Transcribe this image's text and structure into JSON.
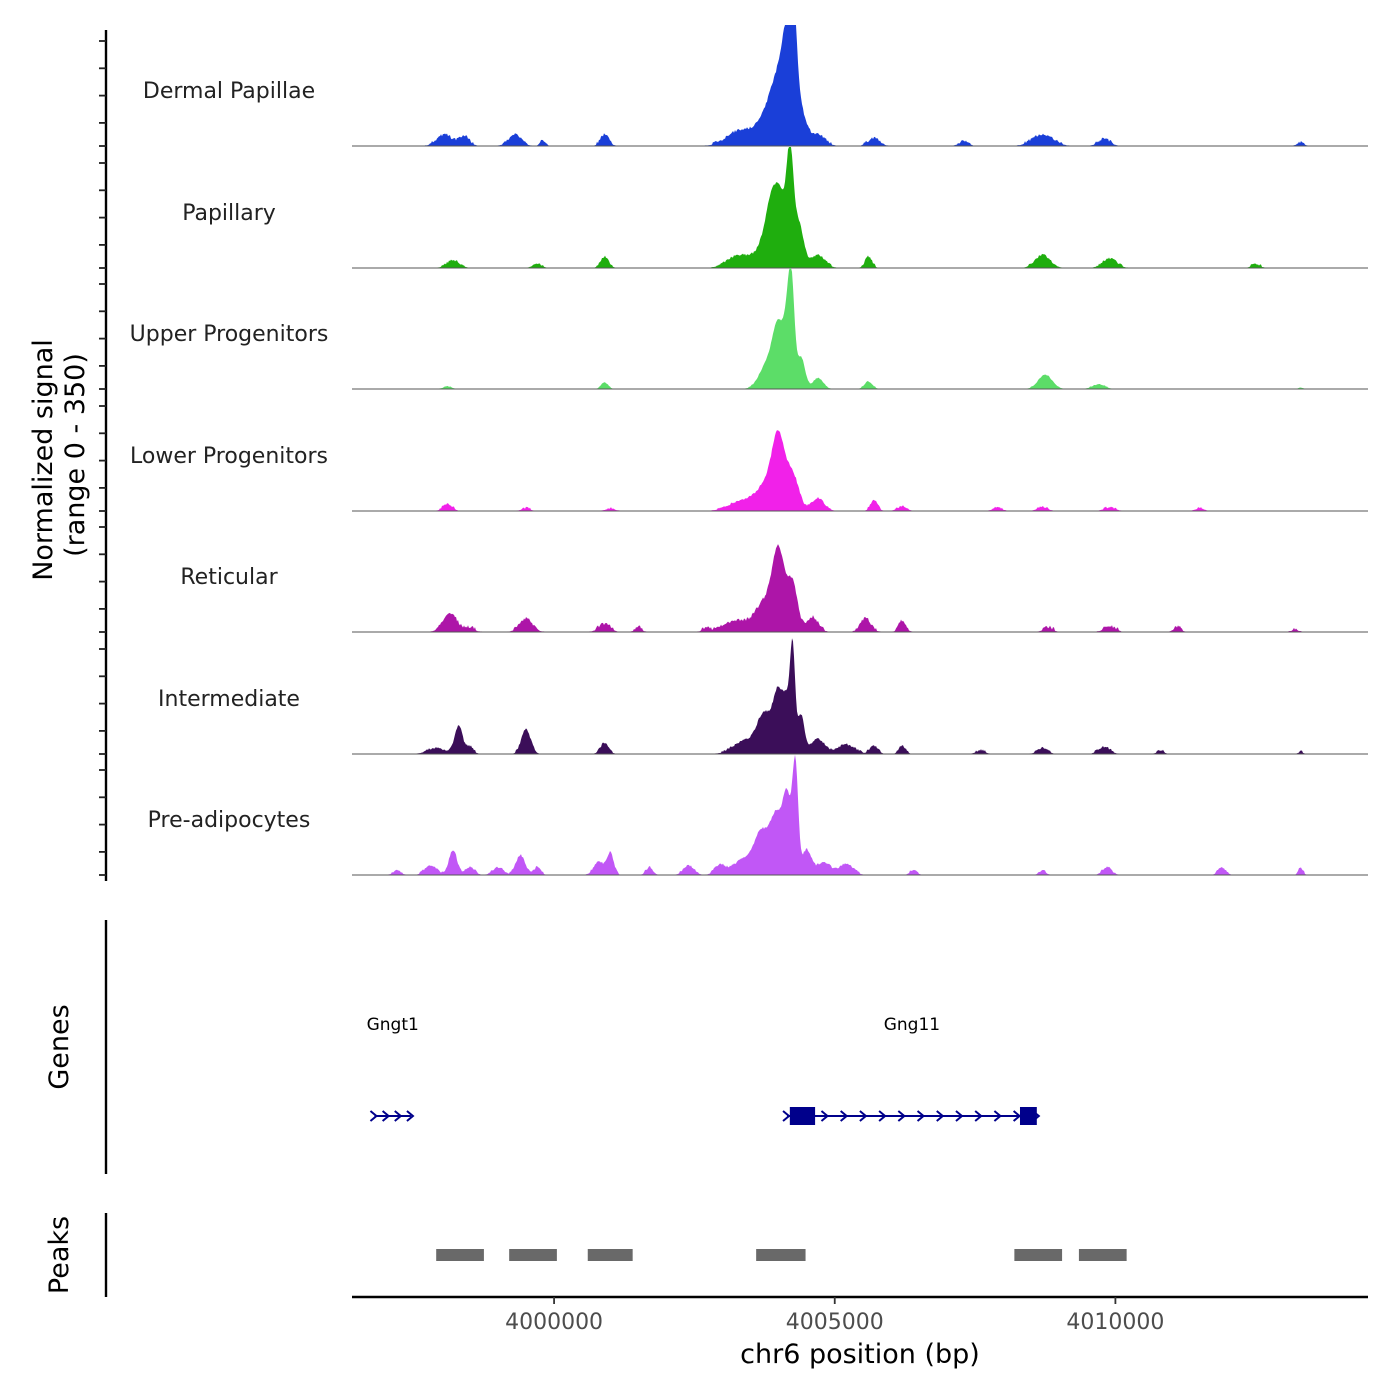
{
  "chart_data": {
    "type": "area",
    "title": "",
    "chromosome": "chr6",
    "xlabel": "chr6 position (bp)",
    "ylabel": "Normalized signal",
    "ylabel_range": "(range 0 - 350)",
    "xlim": [
      3996400,
      4014500
    ],
    "ylim": [
      0,
      350
    ],
    "x_ticks": [
      4000000,
      4005000,
      4010000
    ],
    "x_tick_labels": [
      "4000000",
      "4005000",
      "4010000"
    ],
    "tracks": [
      {
        "name": "Dermal Papillae",
        "color": "#1a3fd8",
        "peaks": [
          [
            3998050,
            30,
            130
          ],
          [
            3998400,
            25,
            90
          ],
          [
            3999300,
            30,
            110
          ],
          [
            3999800,
            12,
            50
          ],
          [
            4000900,
            30,
            70
          ],
          [
            4003300,
            40,
            220
          ],
          [
            4003750,
            60,
            180
          ],
          [
            4004000,
            170,
            150
          ],
          [
            4004150,
            200,
            90
          ],
          [
            4004250,
            310,
            60
          ],
          [
            4004350,
            120,
            120
          ],
          [
            4004700,
            30,
            120
          ],
          [
            4005700,
            20,
            100
          ],
          [
            4007300,
            12,
            80
          ],
          [
            4008700,
            30,
            180
          ],
          [
            4009800,
            18,
            100
          ],
          [
            4013300,
            8,
            60
          ]
        ],
        "noise": 5
      },
      {
        "name": "Papillary",
        "color": "#1fae0e",
        "peaks": [
          [
            3998200,
            20,
            110
          ],
          [
            3999700,
            10,
            80
          ],
          [
            4000900,
            30,
            70
          ],
          [
            4003300,
            35,
            200
          ],
          [
            4003750,
            60,
            150
          ],
          [
            4003900,
            170,
            110
          ],
          [
            4004050,
            140,
            80
          ],
          [
            4004200,
            310,
            60
          ],
          [
            4004350,
            130,
            90
          ],
          [
            4004700,
            35,
            120
          ],
          [
            4005600,
            30,
            60
          ],
          [
            4008700,
            35,
            130
          ],
          [
            4009900,
            25,
            120
          ],
          [
            4012500,
            8,
            80
          ]
        ],
        "noise": 4
      },
      {
        "name": "Upper Progenitors",
        "color": "#5cdd68",
        "peaks": [
          [
            3998100,
            6,
            80
          ],
          [
            4000900,
            18,
            60
          ],
          [
            4003800,
            70,
            140
          ],
          [
            4004000,
            170,
            100
          ],
          [
            4004150,
            130,
            60
          ],
          [
            4004230,
            280,
            55
          ],
          [
            4004400,
            90,
            70
          ],
          [
            4004700,
            30,
            90
          ],
          [
            4005600,
            20,
            70
          ],
          [
            4008750,
            40,
            120
          ],
          [
            4009700,
            12,
            110
          ],
          [
            4013300,
            4,
            40
          ]
        ],
        "noise": 2
      },
      {
        "name": "Lower Progenitors",
        "color": "#f121e9",
        "peaks": [
          [
            3998100,
            18,
            80
          ],
          [
            3999500,
            6,
            80
          ],
          [
            4001000,
            6,
            80
          ],
          [
            4003400,
            30,
            240
          ],
          [
            4003800,
            70,
            160
          ],
          [
            4004000,
            190,
            110
          ],
          [
            4004250,
            100,
            110
          ],
          [
            4004700,
            35,
            110
          ],
          [
            4005700,
            30,
            60
          ],
          [
            4006200,
            12,
            80
          ],
          [
            4007900,
            8,
            80
          ],
          [
            4008700,
            10,
            90
          ],
          [
            4009900,
            8,
            100
          ],
          [
            4011500,
            6,
            80
          ]
        ],
        "noise": 4
      },
      {
        "name": "Reticular",
        "color": "#ad15a8",
        "peaks": [
          [
            3998150,
            50,
            120
          ],
          [
            3998500,
            10,
            80
          ],
          [
            3999500,
            35,
            110
          ],
          [
            4000900,
            20,
            100
          ],
          [
            4001500,
            10,
            60
          ],
          [
            4002700,
            8,
            60
          ],
          [
            4003250,
            30,
            220
          ],
          [
            4003750,
            80,
            160
          ],
          [
            4004000,
            220,
            110
          ],
          [
            4004250,
            130,
            90
          ],
          [
            4004600,
            40,
            100
          ],
          [
            4005550,
            35,
            90
          ],
          [
            4006200,
            30,
            60
          ],
          [
            4008800,
            10,
            80
          ],
          [
            4009900,
            12,
            100
          ],
          [
            4011100,
            12,
            60
          ],
          [
            4013200,
            5,
            60
          ]
        ],
        "noise": 6
      },
      {
        "name": "Intermediate",
        "color": "#3b0e59",
        "peaks": [
          [
            3997900,
            15,
            150
          ],
          [
            3998300,
            80,
            70
          ],
          [
            3998500,
            20,
            60
          ],
          [
            3999500,
            70,
            80
          ],
          [
            4000900,
            30,
            70
          ],
          [
            4003400,
            35,
            200
          ],
          [
            4003750,
            110,
            130
          ],
          [
            4004000,
            170,
            90
          ],
          [
            4004150,
            120,
            60
          ],
          [
            4004250,
            290,
            45
          ],
          [
            4004400,
            110,
            60
          ],
          [
            4004700,
            40,
            120
          ],
          [
            4005200,
            25,
            150
          ],
          [
            4005700,
            20,
            70
          ],
          [
            4006200,
            20,
            60
          ],
          [
            4007600,
            8,
            80
          ],
          [
            4008700,
            15,
            90
          ],
          [
            4009800,
            18,
            100
          ],
          [
            4010800,
            8,
            60
          ],
          [
            4013300,
            5,
            40
          ]
        ],
        "noise": 4
      },
      {
        "name": "Pre-adipocytes",
        "color": "#c157f6",
        "peaks": [
          [
            3997200,
            10,
            70
          ],
          [
            3997800,
            25,
            100
          ],
          [
            3998200,
            70,
            70
          ],
          [
            3998500,
            20,
            80
          ],
          [
            3999000,
            20,
            90
          ],
          [
            3999400,
            55,
            80
          ],
          [
            3999700,
            20,
            60
          ],
          [
            4000800,
            35,
            90
          ],
          [
            4001000,
            60,
            60
          ],
          [
            4001700,
            20,
            60
          ],
          [
            4002400,
            25,
            90
          ],
          [
            4002950,
            25,
            90
          ],
          [
            4003400,
            45,
            200
          ],
          [
            4003700,
            110,
            120
          ],
          [
            4003950,
            160,
            100
          ],
          [
            4004150,
            220,
            80
          ],
          [
            4004300,
            300,
            50
          ],
          [
            4004500,
            70,
            80
          ],
          [
            4004800,
            35,
            120
          ],
          [
            4005200,
            30,
            120
          ],
          [
            4006400,
            12,
            60
          ],
          [
            4008700,
            10,
            60
          ],
          [
            4009850,
            20,
            80
          ],
          [
            4011900,
            18,
            70
          ],
          [
            4013300,
            18,
            40
          ]
        ],
        "noise": 4
      }
    ],
    "genes": [
      {
        "name": "Gngt1",
        "start": 3996800,
        "end": 3997450,
        "strand": "+",
        "color": "#00008b",
        "exons": []
      },
      {
        "name": "Gng11",
        "start": 4004150,
        "end": 4008600,
        "strand": "+",
        "color": "#00008b",
        "exons": [
          [
            4004200,
            4004650
          ],
          [
            4008300,
            4008600
          ]
        ]
      }
    ],
    "genes_label": "Genes",
    "peaks_track": {
      "label": "Peaks",
      "color": "#696969",
      "regions": [
        [
          3997900,
          3998750
        ],
        [
          3999200,
          4000050
        ],
        [
          4000600,
          4001400
        ],
        [
          4003600,
          4004480
        ],
        [
          4008200,
          4009050
        ],
        [
          4009350,
          4010200
        ]
      ]
    }
  }
}
